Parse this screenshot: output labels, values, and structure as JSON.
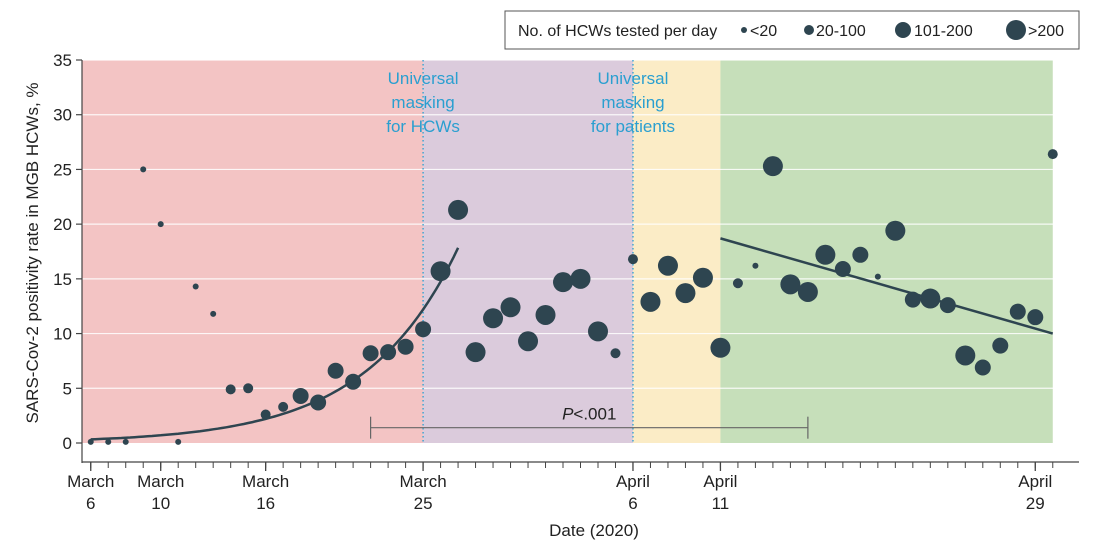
{
  "chart_data": {
    "type": "scatter",
    "title": "",
    "ylabel": "SARS-Cov-2 positivity rate in MGB HCWs, %",
    "xlabel": "Date (2020)",
    "ylim": [
      0,
      35
    ],
    "yticks": [
      0,
      5,
      10,
      15,
      20,
      25,
      30,
      35
    ],
    "xlim": [
      0.5,
      57.5
    ],
    "xticks": [
      {
        "day": 6,
        "line1": "March",
        "line2": "6"
      },
      {
        "day": 10,
        "line1": "March",
        "line2": "10"
      },
      {
        "day": 16,
        "line1": "March",
        "line2": "16"
      },
      {
        "day": 25,
        "line1": "March",
        "line2": "25"
      },
      {
        "day": 37,
        "line1": "April",
        "line2": "6"
      },
      {
        "day": 42,
        "line1": "April",
        "line2": "11"
      },
      {
        "day": 60,
        "line1": "April",
        "line2": "29"
      }
    ],
    "day_axis_start": 6,
    "periods": [
      {
        "name": "period-1",
        "start": 0.5,
        "end": 25,
        "color": "#f3c4c4"
      },
      {
        "name": "period-2",
        "start": 25,
        "end": 37,
        "color": "#dbcbdc"
      },
      {
        "name": "period-3",
        "start": 37,
        "end": 42,
        "color": "#fbecc6"
      },
      {
        "name": "period-4",
        "start": 42,
        "end": 61,
        "color": "#c6dfba"
      }
    ],
    "interventions": [
      {
        "day": 25,
        "lines": [
          "Universal",
          "masking",
          "for HCWs"
        ]
      },
      {
        "day": 37,
        "lines": [
          "Universal",
          "masking",
          "for patients"
        ]
      }
    ],
    "size_classes": [
      {
        "key": "s",
        "label": "<20",
        "r": 3
      },
      {
        "key": "m",
        "label": "20-100",
        "r": 5
      },
      {
        "key": "l",
        "label": "101-200",
        "r": 8
      },
      {
        "key": "xl",
        "label": ">200",
        "r": 10
      }
    ],
    "legend_title": "No. of HCWs tested per day",
    "points": [
      {
        "day": 6,
        "y": 0.1,
        "size": "s"
      },
      {
        "day": 7,
        "y": 0.1,
        "size": "s"
      },
      {
        "day": 8,
        "y": 0.1,
        "size": "s"
      },
      {
        "day": 9,
        "y": 25.0,
        "size": "s"
      },
      {
        "day": 10,
        "y": 20.0,
        "size": "s"
      },
      {
        "day": 11,
        "y": 0.1,
        "size": "s"
      },
      {
        "day": 12,
        "y": 14.3,
        "size": "s"
      },
      {
        "day": 13,
        "y": 11.8,
        "size": "s"
      },
      {
        "day": 14,
        "y": 4.9,
        "size": "m"
      },
      {
        "day": 15,
        "y": 5.0,
        "size": "m"
      },
      {
        "day": 16,
        "y": 2.6,
        "size": "m"
      },
      {
        "day": 17,
        "y": 3.3,
        "size": "m"
      },
      {
        "day": 18,
        "y": 4.3,
        "size": "l"
      },
      {
        "day": 19,
        "y": 3.7,
        "size": "l"
      },
      {
        "day": 20,
        "y": 6.6,
        "size": "l"
      },
      {
        "day": 21,
        "y": 5.6,
        "size": "l"
      },
      {
        "day": 22,
        "y": 8.2,
        "size": "l"
      },
      {
        "day": 23,
        "y": 8.3,
        "size": "l"
      },
      {
        "day": 24,
        "y": 8.8,
        "size": "l"
      },
      {
        "day": 25,
        "y": 10.4,
        "size": "l"
      },
      {
        "day": 26,
        "y": 15.7,
        "size": "xl"
      },
      {
        "day": 27,
        "y": 21.3,
        "size": "xl"
      },
      {
        "day": 28,
        "y": 8.3,
        "size": "xl"
      },
      {
        "day": 29,
        "y": 11.4,
        "size": "xl"
      },
      {
        "day": 30,
        "y": 12.4,
        "size": "xl"
      },
      {
        "day": 31,
        "y": 9.3,
        "size": "xl"
      },
      {
        "day": 32,
        "y": 11.7,
        "size": "xl"
      },
      {
        "day": 33,
        "y": 14.7,
        "size": "xl"
      },
      {
        "day": 34,
        "y": 15.0,
        "size": "xl"
      },
      {
        "day": 35,
        "y": 10.2,
        "size": "xl"
      },
      {
        "day": 36,
        "y": 8.2,
        "size": "m"
      },
      {
        "day": 37,
        "y": 16.8,
        "size": "m"
      },
      {
        "day": 38,
        "y": 12.9,
        "size": "xl"
      },
      {
        "day": 39,
        "y": 16.2,
        "size": "xl"
      },
      {
        "day": 40,
        "y": 13.7,
        "size": "xl"
      },
      {
        "day": 41,
        "y": 15.1,
        "size": "xl"
      },
      {
        "day": 42,
        "y": 8.7,
        "size": "xl"
      },
      {
        "day": 43,
        "y": 14.6,
        "size": "m"
      },
      {
        "day": 44,
        "y": 16.2,
        "size": "s"
      },
      {
        "day": 45,
        "y": 25.3,
        "size": "xl"
      },
      {
        "day": 46,
        "y": 14.5,
        "size": "xl"
      },
      {
        "day": 47,
        "y": 13.8,
        "size": "xl"
      },
      {
        "day": 48,
        "y": 17.2,
        "size": "xl"
      },
      {
        "day": 49,
        "y": 15.9,
        "size": "l"
      },
      {
        "day": 50,
        "y": 17.2,
        "size": "l"
      },
      {
        "day": 51,
        "y": 15.2,
        "size": "s"
      },
      {
        "day": 52,
        "y": 19.4,
        "size": "xl"
      },
      {
        "day": 53,
        "y": 13.1,
        "size": "l"
      },
      {
        "day": 54,
        "y": 13.2,
        "size": "xl"
      },
      {
        "day": 55,
        "y": 12.6,
        "size": "l"
      },
      {
        "day": 56,
        "y": 8.0,
        "size": "xl"
      },
      {
        "day": 57,
        "y": 6.9,
        "size": "l"
      },
      {
        "day": 58,
        "y": 8.9,
        "size": "l"
      },
      {
        "day": 59,
        "y": 12.0,
        "size": "l"
      },
      {
        "day": 60,
        "y": 11.5,
        "size": "l"
      },
      {
        "day": 61,
        "y": 26.4,
        "size": "m"
      }
    ],
    "trend_exponential": {
      "day_start": 6,
      "day_end": 27.1,
      "a": 0.33,
      "b": 0.19
    },
    "trend_linear": {
      "x1": 42,
      "y1": 18.7,
      "x2": 61,
      "y2": 10.0
    },
    "pvalue": {
      "label_prefix": "P",
      "label_suffix": "<.001",
      "from_day": 22,
      "to_day": 47,
      "y": 1.4
    }
  }
}
